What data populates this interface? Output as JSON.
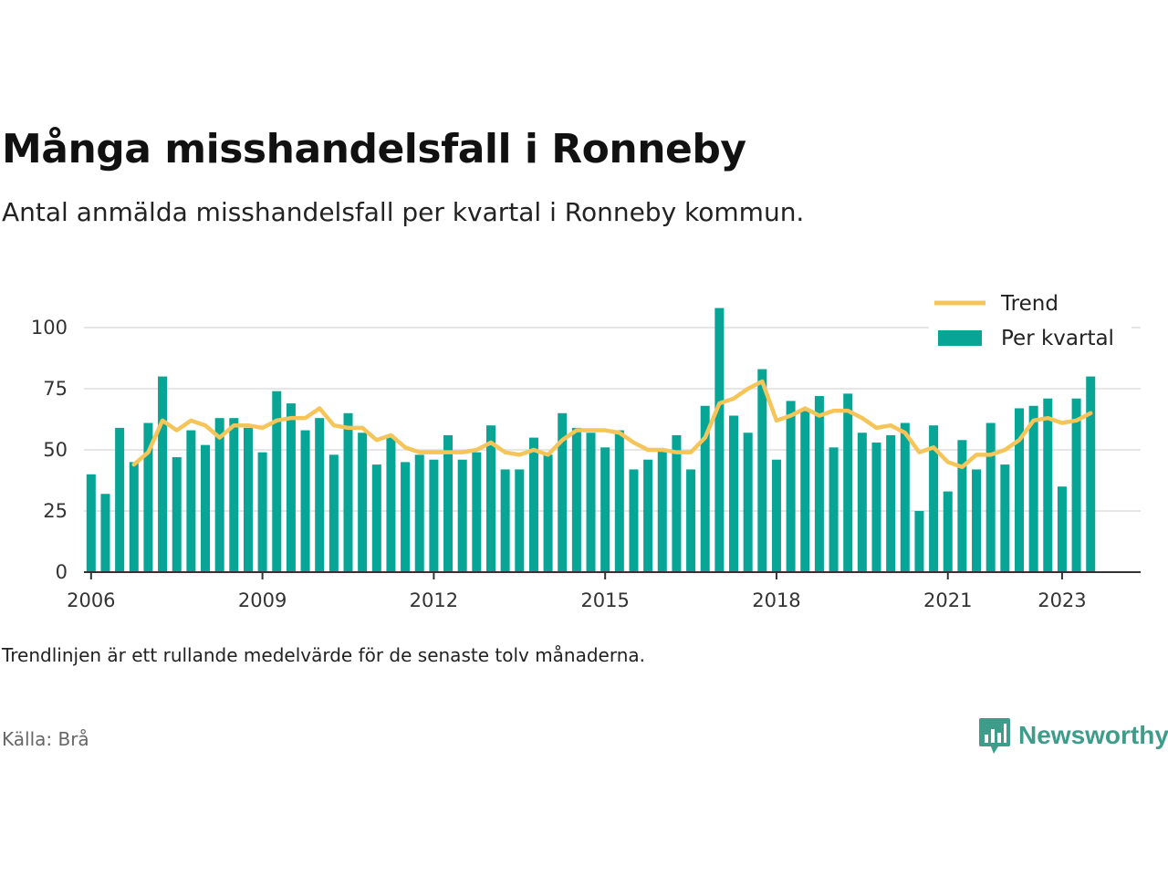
{
  "title": "Många misshandelsfall i Ronneby",
  "subtitle": "Antal anmälda misshandelsfall per kvartal i Ronneby kommun.",
  "note": "Trendlinjen är ett rullande medelvärde för de senaste tolv månaderna.",
  "source": "Källa: Brå",
  "brand": "Newsworthy",
  "colors": {
    "bars": "#07a596",
    "trend": "#f5c55a",
    "grid": "#dddddd",
    "axis": "#333333",
    "brand": "#3e9c8a"
  },
  "icons": {
    "brand_logo": "bar-chart-speech-bubble-icon"
  },
  "chart_data": {
    "type": "bar",
    "title": "Många misshandelsfall i Ronneby",
    "ylim": [
      0,
      100
    ],
    "yticks": [
      0,
      25,
      50,
      75,
      100
    ],
    "xlim": [
      2005.875,
      2024.375
    ],
    "xticks": [
      {
        "value": 2006,
        "label": "2006"
      },
      {
        "value": 2009,
        "label": "2009"
      },
      {
        "value": 2012,
        "label": "2012"
      },
      {
        "value": 2015,
        "label": "2015"
      },
      {
        "value": 2018,
        "label": "2018"
      },
      {
        "value": 2021,
        "label": "2021"
      },
      {
        "value": 2023,
        "label": "2023"
      }
    ],
    "grid": true,
    "legend": "top-right",
    "series": [
      {
        "name": "Per kvartal",
        "type": "bar",
        "x_start": 2006,
        "step": 0.25,
        "values": [
          40,
          32,
          59,
          45,
          61,
          80,
          47,
          58,
          52,
          63,
          63,
          59,
          49,
          74,
          69,
          58,
          63,
          48,
          65,
          57,
          44,
          55,
          45,
          48,
          46,
          56,
          46,
          49,
          60,
          42,
          42,
          55,
          48,
          65,
          59,
          57,
          51,
          58,
          42,
          46,
          50,
          56,
          42,
          68,
          108,
          64,
          57,
          83,
          46,
          70,
          66,
          72,
          51,
          73,
          57,
          53,
          56,
          61,
          25,
          60,
          33,
          54,
          42,
          61,
          44,
          67,
          68,
          71,
          35,
          71,
          80
        ]
      },
      {
        "name": "Trend",
        "type": "line",
        "x_start": 2006.75,
        "step": 0.25,
        "values": [
          44,
          49,
          62,
          58,
          62,
          60,
          55,
          60,
          60,
          59,
          62,
          63,
          63,
          67,
          60,
          59,
          59,
          54,
          56,
          51,
          49,
          49,
          49,
          49,
          50,
          53,
          49,
          48,
          50,
          48,
          54,
          58,
          58,
          58,
          57,
          53,
          50,
          50,
          49,
          49,
          55,
          69,
          71,
          75,
          78,
          62,
          64,
          67,
          64,
          66,
          66,
          63,
          59,
          60,
          57,
          49,
          51,
          45,
          43,
          48,
          48,
          50,
          54,
          62,
          63,
          61,
          62,
          65
        ]
      }
    ]
  }
}
